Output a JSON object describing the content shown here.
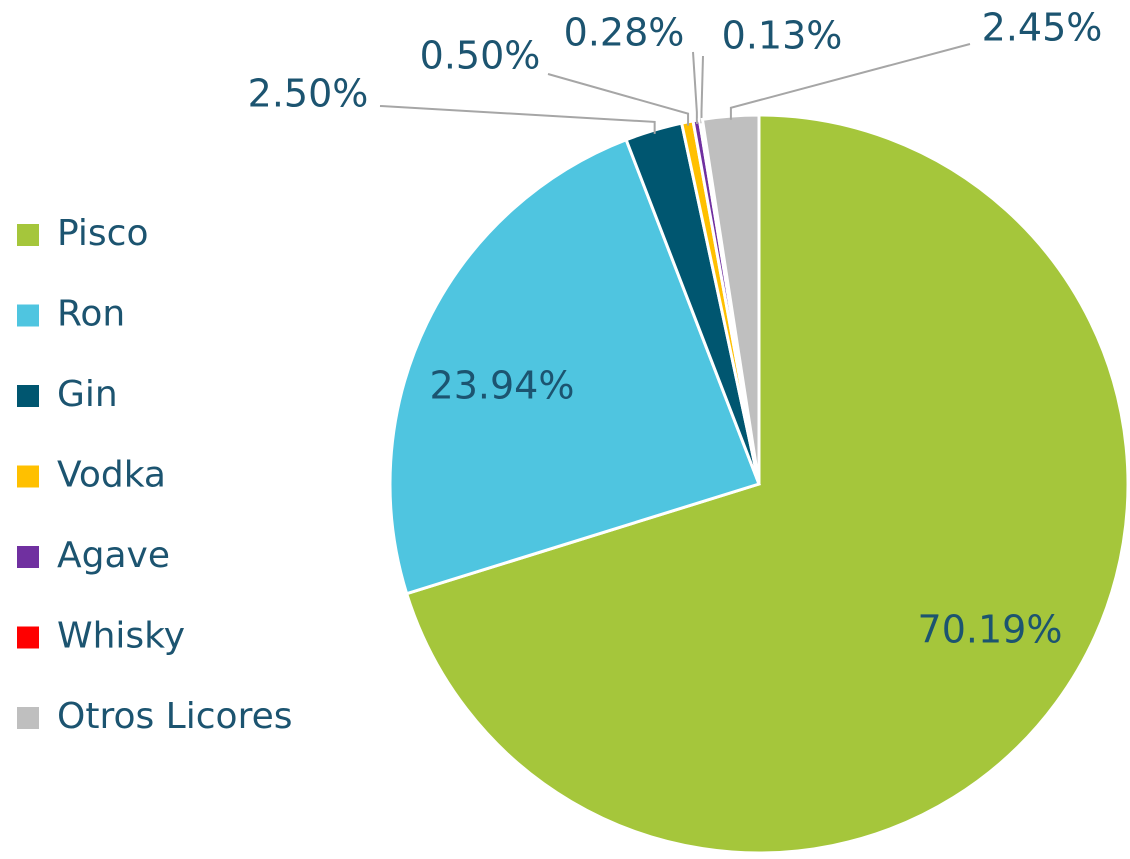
{
  "chart_data": {
    "type": "pie",
    "categories": [
      "Pisco",
      "Ron",
      "Gin",
      "Vodka",
      "Agave",
      "Whisky",
      "Otros Licores"
    ],
    "values": [
      70.19,
      23.94,
      2.5,
      0.5,
      0.28,
      0.13,
      2.45
    ],
    "value_labels": [
      "70.19%",
      "23.94%",
      "2.50%",
      "0.50%",
      "0.28%",
      "0.13%",
      "2.45%"
    ],
    "colors": [
      "#a5c63b",
      "#4fc5e0",
      "#005670",
      "#ffc000",
      "#7030a0",
      "#ff0000",
      "#bfbfbf"
    ],
    "legend": "left"
  }
}
